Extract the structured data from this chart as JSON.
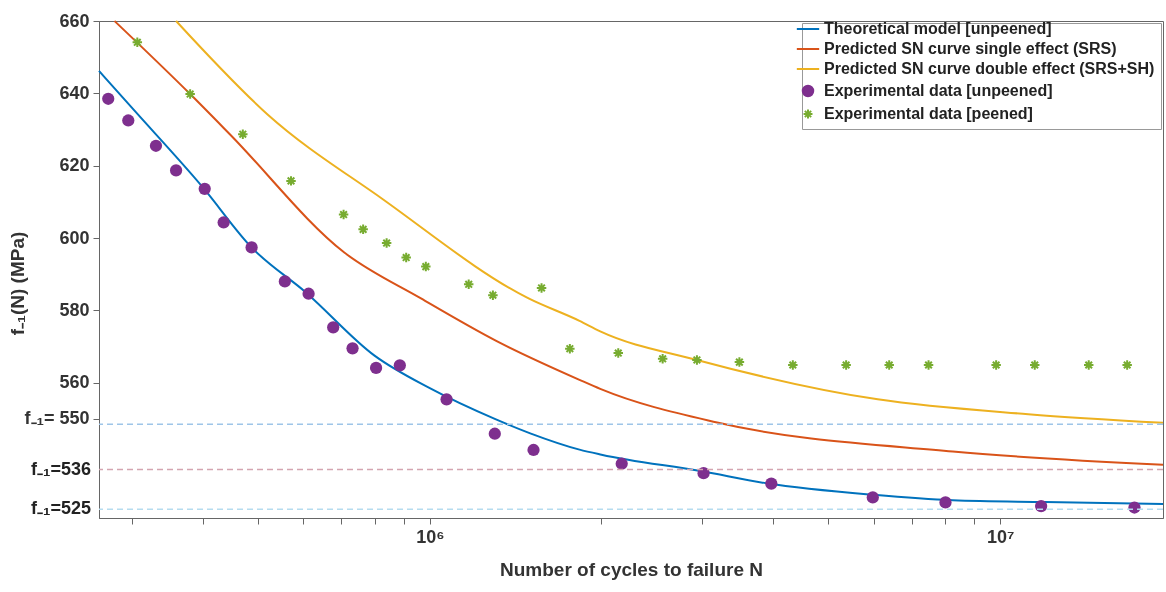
{
  "chart_data": {
    "type": "line",
    "xlabel": "Number of cycles to failure N",
    "ylabel": "f₋₁(N)  (MPa)",
    "log": "x",
    "legend": "top right",
    "xlim": [
      263000,
      19300000
    ],
    "xticks": [
      {
        "value": 300000,
        "label": null
      },
      {
        "value": 400000,
        "label": null
      },
      {
        "value": 500000,
        "label": null
      },
      {
        "value": 600000,
        "label": null
      },
      {
        "value": 700000,
        "label": null
      },
      {
        "value": 800000,
        "label": null
      },
      {
        "value": 900000,
        "label": null
      },
      {
        "value": 1000000,
        "label": "10⁶"
      },
      {
        "value": 2000000,
        "label": null
      },
      {
        "value": 3000000,
        "label": null
      },
      {
        "value": 4000000,
        "label": null
      },
      {
        "value": 5000000,
        "label": null
      },
      {
        "value": 6000000,
        "label": null
      },
      {
        "value": 7000000,
        "label": null
      },
      {
        "value": 8000000,
        "label": null
      },
      {
        "value": 9000000,
        "label": null
      },
      {
        "value": 10000000,
        "label": "10⁷"
      }
    ],
    "ylim": [
      522.6,
      660
    ],
    "yticks": [
      {
        "value": 550,
        "label": "f₋₁= 550"
      },
      560,
      580,
      600,
      620,
      640,
      660
    ],
    "ref_lines": [
      {
        "axis": "y",
        "value": 548.5,
        "color": "#9ec5e8",
        "line_style": "dashed"
      },
      {
        "axis": "y",
        "value": 536,
        "label": "f₋₁=536",
        "color": "#d4a5b0",
        "line_style": "dashed"
      },
      {
        "axis": "y",
        "value": 525,
        "label": "f₋₁=525",
        "color": "#b5dcef",
        "line_style": "dashed"
      }
    ],
    "series": [
      {
        "name": "Theoretical model [unpeened]",
        "type": "line",
        "color": "#0072bd",
        "x": [
          263000,
          300000,
          400000,
          487000,
          607000,
          800000,
          1000000,
          1300000,
          1500000,
          1830000,
          2000000,
          3000000,
          3890000,
          6000000,
          8260000,
          12000000,
          19300000
        ],
        "values": [
          646.2,
          636.1,
          614.0,
          597.4,
          584.9,
          567.5,
          558.5,
          550.0,
          546.0,
          541.5,
          540.1,
          535.5,
          532.2,
          529.0,
          527.5,
          527.0,
          526.5
        ]
      },
      {
        "name": "Predicted SN curve single effect (SRS)",
        "type": "line",
        "color": "#d95319",
        "x": [
          280000,
          380000,
          446000,
          708000,
          965000,
          1310000,
          1830000,
          1990000,
          3190000,
          8260000,
          19300000
        ],
        "values": [
          660.0,
          639.8,
          628.7,
          596.0,
          583.3,
          571.5,
          560.8,
          558.3,
          549.0,
          541.0,
          537.3
        ]
      },
      {
        "name": "Predicted SN curve double effect (SRS+SH)",
        "type": "line",
        "color": "#edb120",
        "x": [
          359000,
          520000,
          826000,
          1490000,
          1830000,
          1990000,
          2940000,
          6100000,
          11200000,
          19300000
        ],
        "values": [
          660.0,
          634.1,
          610.8,
          583.3,
          577.1,
          574.2,
          566.3,
          555.4,
          551.3,
          548.9
        ]
      },
      {
        "name": "Experimental data [unpeened]",
        "type": "scatter",
        "marker": "circle",
        "color": "#7e2f8e",
        "x": [
          273000,
          296000,
          331000,
          359000,
          403000,
          435000,
          487000,
          557000,
          613000,
          677000,
          732000,
          805000,
          886000,
          1070000,
          1300000,
          1520000,
          2170000,
          3020000,
          3970000,
          5980000,
          8020000,
          11800000,
          17200000
        ],
        "values": [
          638.5,
          632.5,
          625.5,
          618.7,
          613.6,
          604.3,
          597.4,
          588.0,
          584.6,
          575.3,
          569.5,
          564.1,
          564.8,
          555.4,
          545.9,
          541.4,
          537.6,
          535.0,
          532.1,
          528.3,
          526.9,
          525.9,
          525.5
        ]
      },
      {
        "name": "Experimental data [peened]",
        "type": "scatter",
        "marker": "cross",
        "color": "#77ac30",
        "x": [
          307000,
          380000,
          470000,
          571000,
          706000,
          764000,
          840000,
          909000,
          984000,
          1170000,
          1290000,
          1570000,
          1760000,
          2140000,
          2560000,
          2940000,
          3490000,
          4330000,
          5370000,
          6390000,
          7490000,
          9840000,
          11500000,
          14300000,
          16700000
        ],
        "values": [
          654.1,
          639.8,
          628.7,
          615.8,
          606.5,
          602.4,
          598.6,
          594.6,
          592.1,
          587.2,
          584.2,
          586.2,
          569.4,
          568.2,
          566.6,
          566.3,
          565.7,
          564.9,
          564.9,
          564.9,
          564.9,
          564.9,
          564.9,
          564.9,
          564.9
        ]
      }
    ]
  }
}
